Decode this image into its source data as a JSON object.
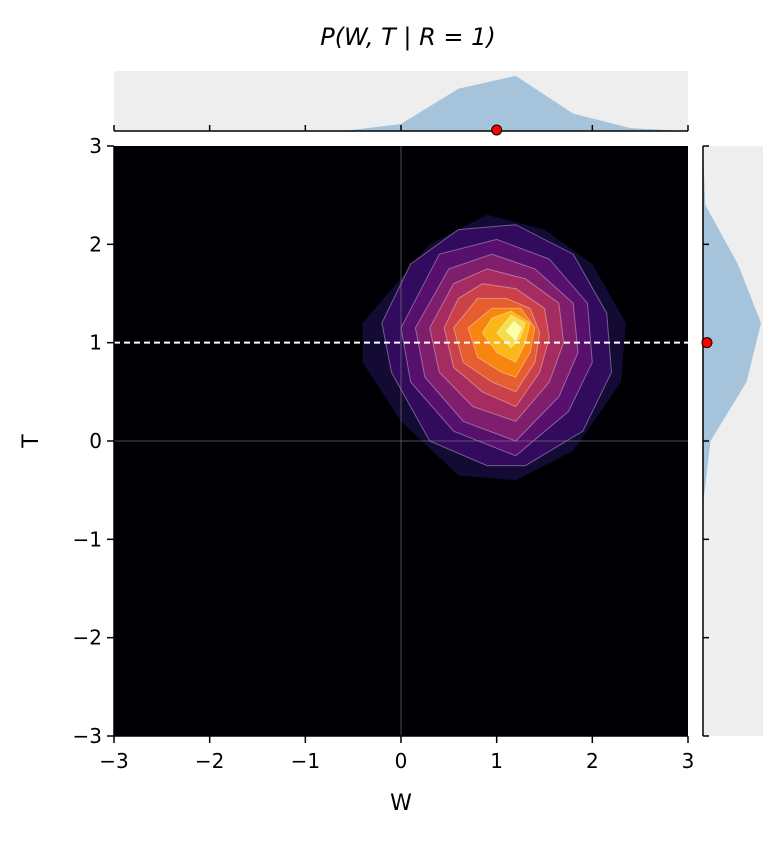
{
  "chart_data": {
    "type": "contour",
    "title": "P(W, T | R = 1)",
    "xlabel": "W",
    "ylabel": "T",
    "xlim": [
      -3,
      3
    ],
    "ylim": [
      -3,
      3
    ],
    "xticks": [
      "−3",
      "−2",
      "−1",
      "0",
      "1",
      "2",
      "3"
    ],
    "yticks": [
      "−3",
      "−2",
      "−1",
      "0",
      "1",
      "2",
      "3"
    ],
    "xtick_values": [
      -3,
      -2,
      -1,
      0,
      1,
      2,
      3
    ],
    "ytick_values": [
      -3,
      -2,
      -1,
      0,
      1,
      2,
      3
    ],
    "colormap": "inferno",
    "background_color": "#000004",
    "reference_lines": {
      "x": 0,
      "y": 0,
      "color": "#808080"
    },
    "condition_line": {
      "y": 1,
      "style": "dashed",
      "color": "#ffffff"
    },
    "marker_color": "#ff0000",
    "marker_w": 1,
    "marker_t": 1,
    "contours": [
      {
        "level": 1,
        "color": "#140b34",
        "points": [
          [
            -0.4,
            1.2
          ],
          [
            -0.4,
            0.8
          ],
          [
            0.0,
            0.2
          ],
          [
            0.6,
            -0.35
          ],
          [
            1.2,
            -0.4
          ],
          [
            1.8,
            -0.1
          ],
          [
            2.3,
            0.6
          ],
          [
            2.35,
            1.2
          ],
          [
            2.0,
            1.8
          ],
          [
            1.5,
            2.15
          ],
          [
            0.9,
            2.3
          ],
          [
            0.3,
            2.0
          ]
        ]
      },
      {
        "level": 2,
        "color": "#320a5e",
        "points": [
          [
            -0.2,
            1.2
          ],
          [
            -0.1,
            0.7
          ],
          [
            0.3,
            0.0
          ],
          [
            0.9,
            -0.25
          ],
          [
            1.3,
            -0.25
          ],
          [
            1.9,
            0.1
          ],
          [
            2.2,
            0.7
          ],
          [
            2.15,
            1.3
          ],
          [
            1.8,
            1.9
          ],
          [
            1.2,
            2.2
          ],
          [
            0.6,
            2.15
          ],
          [
            0.1,
            1.8
          ]
        ]
      },
      {
        "level": 3,
        "color": "#57106e",
        "points": [
          [
            0.0,
            1.15
          ],
          [
            0.1,
            0.6
          ],
          [
            0.55,
            0.1
          ],
          [
            1.2,
            -0.15
          ],
          [
            1.75,
            0.3
          ],
          [
            2.0,
            0.8
          ],
          [
            1.95,
            1.4
          ],
          [
            1.55,
            1.85
          ],
          [
            1.0,
            2.05
          ],
          [
            0.4,
            1.9
          ]
        ]
      },
      {
        "level": 4,
        "color": "#7e1e6c",
        "points": [
          [
            0.15,
            1.15
          ],
          [
            0.25,
            0.65
          ],
          [
            0.65,
            0.2
          ],
          [
            1.2,
            0.0
          ],
          [
            1.65,
            0.45
          ],
          [
            1.85,
            0.9
          ],
          [
            1.8,
            1.4
          ],
          [
            1.4,
            1.75
          ],
          [
            0.95,
            1.9
          ],
          [
            0.5,
            1.75
          ]
        ]
      },
      {
        "level": 5,
        "color": "#a52c60",
        "points": [
          [
            0.3,
            1.15
          ],
          [
            0.4,
            0.7
          ],
          [
            0.75,
            0.35
          ],
          [
            1.2,
            0.2
          ],
          [
            1.55,
            0.6
          ],
          [
            1.7,
            1.0
          ],
          [
            1.65,
            1.4
          ],
          [
            1.3,
            1.65
          ],
          [
            0.9,
            1.75
          ],
          [
            0.55,
            1.6
          ]
        ]
      },
      {
        "level": 6,
        "color": "#cb4149",
        "points": [
          [
            0.45,
            1.15
          ],
          [
            0.55,
            0.75
          ],
          [
            0.85,
            0.5
          ],
          [
            1.2,
            0.35
          ],
          [
            1.45,
            0.7
          ],
          [
            1.55,
            1.05
          ],
          [
            1.5,
            1.35
          ],
          [
            1.2,
            1.55
          ],
          [
            0.85,
            1.6
          ],
          [
            0.6,
            1.45
          ]
        ]
      },
      {
        "level": 7,
        "color": "#e65d2f",
        "points": [
          [
            0.55,
            1.15
          ],
          [
            0.65,
            0.8
          ],
          [
            0.95,
            0.6
          ],
          [
            1.2,
            0.5
          ],
          [
            1.4,
            0.8
          ],
          [
            1.45,
            1.1
          ],
          [
            1.35,
            1.35
          ],
          [
            1.1,
            1.45
          ],
          [
            0.8,
            1.45
          ]
        ]
      },
      {
        "level": 8,
        "color": "#f8850f",
        "points": [
          [
            0.7,
            1.15
          ],
          [
            0.8,
            0.85
          ],
          [
            1.05,
            0.7
          ],
          [
            1.2,
            0.65
          ],
          [
            1.35,
            0.9
          ],
          [
            1.4,
            1.15
          ],
          [
            1.25,
            1.35
          ],
          [
            0.95,
            1.35
          ]
        ]
      },
      {
        "level": 9,
        "color": "#fbb61a",
        "points": [
          [
            0.85,
            1.1
          ],
          [
            1.0,
            0.9
          ],
          [
            1.2,
            0.8
          ],
          [
            1.3,
            1.0
          ],
          [
            1.35,
            1.2
          ],
          [
            1.15,
            1.32
          ],
          [
            0.95,
            1.25
          ]
        ]
      },
      {
        "level": 10,
        "color": "#f4dd4f",
        "points": [
          [
            1.0,
            1.1
          ],
          [
            1.15,
            0.95
          ],
          [
            1.25,
            1.05
          ],
          [
            1.3,
            1.2
          ],
          [
            1.15,
            1.28
          ]
        ]
      },
      {
        "level": 11,
        "color": "#fcffa4",
        "points": [
          [
            1.1,
            1.12
          ],
          [
            1.2,
            1.02
          ],
          [
            1.26,
            1.15
          ],
          [
            1.18,
            1.22
          ]
        ]
      }
    ],
    "marginal_w": {
      "color": "#a5c3da",
      "x": [
        -3.0,
        -2.4,
        -1.8,
        -1.2,
        -0.6,
        0.0,
        0.6,
        1.2,
        1.8,
        2.4,
        3.0
      ],
      "density": [
        0.0,
        0.0,
        0.0,
        0.0,
        0.0,
        0.12,
        0.73,
        0.95,
        0.3,
        0.05,
        0.0
      ]
    },
    "marginal_t": {
      "color": "#a5c3da",
      "y": [
        -3.0,
        -2.4,
        -1.8,
        -1.2,
        -0.6,
        0.0,
        0.6,
        1.2,
        1.8,
        2.4,
        3.0
      ],
      "density": [
        0.0,
        0.0,
        0.0,
        0.0,
        0.01,
        0.13,
        0.75,
        1.0,
        0.6,
        0.04,
        0.0
      ]
    }
  }
}
